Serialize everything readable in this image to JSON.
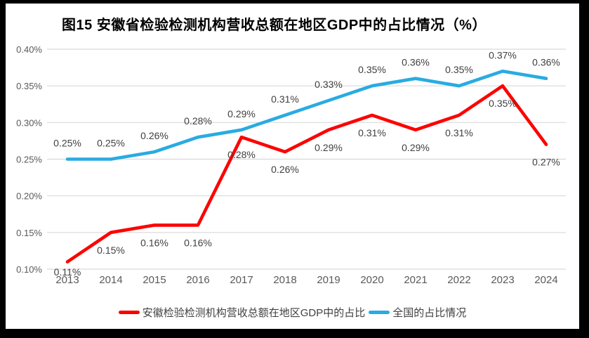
{
  "frame": {
    "border_color": "#000000",
    "panel_background": "#ffffff"
  },
  "chart_data": {
    "type": "line",
    "title": "图15  安徽省检验检测机构营收总额在地区GDP中的占比情况（%）",
    "x": [
      "2013",
      "2014",
      "2015",
      "2016",
      "2017",
      "2018",
      "2019",
      "2020",
      "2021",
      "2022",
      "2023",
      "2024"
    ],
    "y_ticks": [
      "0.40%",
      "0.35%",
      "0.30%",
      "0.25%",
      "0.20%",
      "0.15%",
      "0.10%"
    ],
    "y_tick_values": [
      0.4,
      0.35,
      0.3,
      0.25,
      0.2,
      0.15,
      0.1
    ],
    "ylim": [
      0.1,
      0.4
    ],
    "y_unit": "%",
    "grid": true,
    "legend_position": "bottom",
    "colors": {
      "anhui_red": "#fe0000",
      "national_blue": "#29abe2",
      "gridline": "#d9d9d9",
      "axis_text": "#595959",
      "data_label_text": "#404040"
    },
    "series": [
      {
        "name": "安徽检验检测机构营收总额在地区GDP中的占比",
        "color": "#fe0000",
        "values": [
          0.11,
          0.15,
          0.16,
          0.16,
          0.28,
          0.26,
          0.29,
          0.31,
          0.29,
          0.31,
          0.35,
          0.27
        ],
        "labels": [
          "0.11%",
          "0.15%",
          "0.16%",
          "0.16%",
          "0.28%",
          "0.26%",
          "0.29%",
          "0.31%",
          "0.29%",
          "0.31%",
          "0.35%",
          "0.27%"
        ],
        "label_position": "below"
      },
      {
        "name": "全国的占比情况",
        "color": "#29abe2",
        "values": [
          0.25,
          0.25,
          0.26,
          0.28,
          0.29,
          0.31,
          0.33,
          0.35,
          0.36,
          0.35,
          0.37,
          0.36
        ],
        "labels": [
          "0.25%",
          "0.25%",
          "0.26%",
          "0.28%",
          "0.29%",
          "0.31%",
          "0.33%",
          "0.35%",
          "0.36%",
          "0.35%",
          "0.37%",
          "0.36%"
        ],
        "label_position": "above"
      }
    ]
  }
}
